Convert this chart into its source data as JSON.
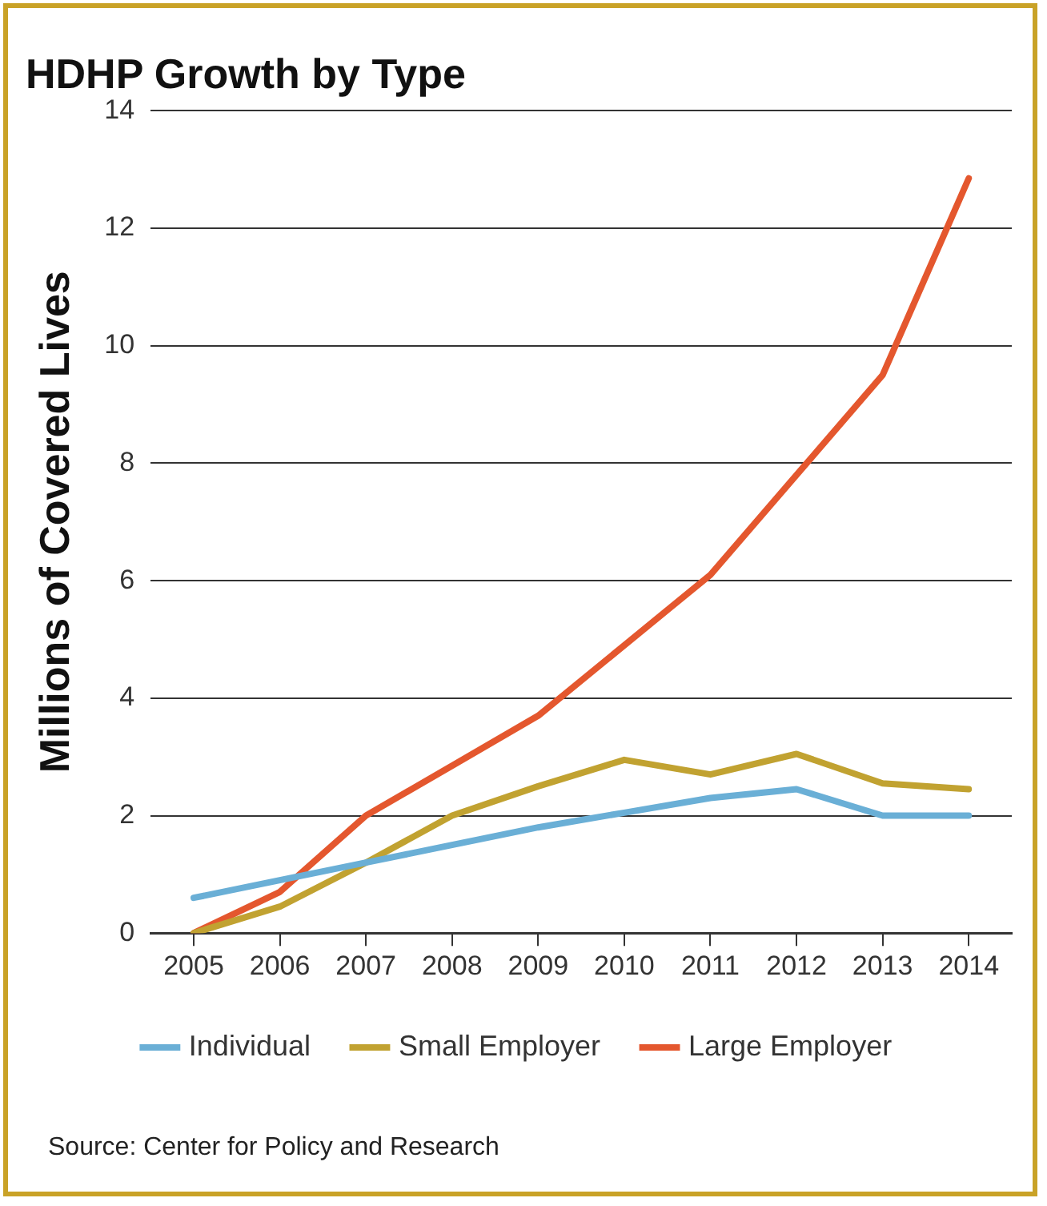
{
  "chart_data": {
    "type": "line",
    "title": "HDHP Growth by Type",
    "ylabel": "Millions of Covered Lives",
    "categories": [
      "2005",
      "2006",
      "2007",
      "2008",
      "2009",
      "2010",
      "2011",
      "2012",
      "2013",
      "2014"
    ],
    "series": [
      {
        "name": "Individual",
        "color": "#6aafd6",
        "values": [
          0.6,
          0.9,
          1.2,
          1.5,
          1.8,
          2.05,
          2.3,
          2.45,
          2.0,
          2.0
        ]
      },
      {
        "name": "Small Employer",
        "color": "#c1a231",
        "values": [
          0,
          0.45,
          1.2,
          2.0,
          2.5,
          2.95,
          2.7,
          3.05,
          2.55,
          2.45
        ]
      },
      {
        "name": "Large Employer",
        "color": "#e4572e",
        "values": [
          0,
          0.7,
          2.0,
          2.85,
          3.7,
          4.9,
          6.1,
          7.8,
          9.5,
          12.85
        ]
      }
    ],
    "ylim": [
      0,
      14
    ],
    "yticks": [
      0,
      2,
      4,
      6,
      8,
      10,
      12,
      14
    ],
    "grid": "y",
    "legend": "bottom",
    "marker": "none",
    "line_style": "solid",
    "annotations": [
      "Source: Center for Policy and Research"
    ]
  }
}
